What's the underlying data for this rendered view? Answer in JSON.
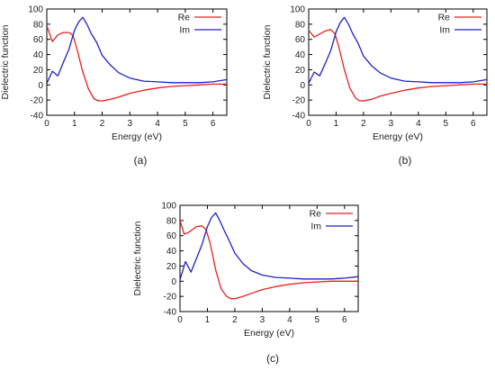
{
  "chart_data": [
    {
      "type": "line",
      "panel_label": "(a)",
      "xlabel": "Energy (eV)",
      "ylabel": "Dielectric function",
      "xlim": [
        0,
        6.5
      ],
      "ylim": [
        -40,
        100
      ],
      "xticks": [
        0,
        1,
        2,
        3,
        4,
        5,
        6
      ],
      "yticks": [
        -40,
        -20,
        0,
        20,
        40,
        60,
        80,
        100
      ],
      "legend_position": "top-right",
      "series": [
        {
          "name": "Re",
          "color": "#e8201d",
          "x": [
            0,
            0.2,
            0.4,
            0.6,
            0.8,
            0.95,
            1.1,
            1.3,
            1.5,
            1.7,
            1.85,
            2.0,
            2.3,
            2.6,
            3.0,
            3.5,
            4.0,
            4.5,
            5.0,
            5.5,
            6.0,
            6.5
          ],
          "y": [
            78,
            57,
            66,
            69,
            69,
            65,
            46,
            17,
            -5,
            -18,
            -21,
            -21,
            -19,
            -16,
            -11,
            -7,
            -4,
            -2,
            -1,
            0,
            1,
            1
          ]
        },
        {
          "name": "Im",
          "color": "#1f22c8",
          "x": [
            0,
            0.2,
            0.4,
            0.6,
            0.8,
            1.0,
            1.15,
            1.3,
            1.45,
            1.6,
            1.8,
            2.0,
            2.3,
            2.6,
            3.0,
            3.5,
            4.0,
            4.5,
            5.0,
            5.5,
            6.0,
            6.5
          ],
          "y": [
            2,
            18,
            12,
            30,
            47,
            72,
            83,
            89,
            80,
            68,
            56,
            39,
            26,
            16,
            9,
            5,
            4,
            3,
            3,
            3,
            4,
            7
          ]
        }
      ]
    },
    {
      "type": "line",
      "panel_label": "(b)",
      "xlabel": "Energy (eV)",
      "ylabel": "Dielectric function",
      "xlim": [
        0,
        6.5
      ],
      "ylim": [
        -40,
        100
      ],
      "xticks": [
        0,
        1,
        2,
        3,
        4,
        5,
        6
      ],
      "yticks": [
        -40,
        -20,
        0,
        20,
        40,
        60,
        80,
        100
      ],
      "legend_position": "top-right",
      "series": [
        {
          "name": "Re",
          "color": "#e8201d",
          "x": [
            0,
            0.2,
            0.4,
            0.6,
            0.8,
            0.95,
            1.1,
            1.3,
            1.5,
            1.7,
            1.85,
            2.0,
            2.3,
            2.6,
            3.0,
            3.5,
            4.0,
            4.5,
            5.0,
            5.5,
            6.0,
            6.5
          ],
          "y": [
            72,
            63,
            67,
            71,
            73,
            68,
            50,
            20,
            -4,
            -17,
            -21,
            -21,
            -19,
            -15,
            -11,
            -7,
            -4,
            -2,
            -1,
            0,
            1,
            1
          ]
        },
        {
          "name": "Im",
          "color": "#1f22c8",
          "x": [
            0,
            0.2,
            0.4,
            0.6,
            0.8,
            1.0,
            1.15,
            1.3,
            1.45,
            1.6,
            1.8,
            2.0,
            2.3,
            2.6,
            3.0,
            3.5,
            4.0,
            4.5,
            5.0,
            5.5,
            6.0,
            6.5
          ],
          "y": [
            2,
            17,
            12,
            28,
            45,
            70,
            82,
            89,
            80,
            68,
            55,
            38,
            25,
            16,
            9,
            5,
            4,
            3,
            3,
            3,
            4,
            7
          ]
        }
      ]
    },
    {
      "type": "line",
      "panel_label": "(c)",
      "xlabel": "Energy (eV)",
      "ylabel": "Dielectric function",
      "xlim": [
        0,
        6.5
      ],
      "ylim": [
        -40,
        100
      ],
      "xticks": [
        0,
        1,
        2,
        3,
        4,
        5,
        6
      ],
      "yticks": [
        -40,
        -20,
        0,
        20,
        40,
        60,
        80,
        100
      ],
      "legend_position": "top-right",
      "series": [
        {
          "name": "Re",
          "color": "#e8201d",
          "x": [
            0,
            0.15,
            0.3,
            0.45,
            0.6,
            0.8,
            0.95,
            1.1,
            1.3,
            1.5,
            1.7,
            1.85,
            2.0,
            2.3,
            2.6,
            3.0,
            3.5,
            4.0,
            4.5,
            5.0,
            5.5,
            6.0,
            6.5
          ],
          "y": [
            80,
            62,
            64,
            68,
            72,
            73,
            68,
            50,
            15,
            -10,
            -20,
            -23,
            -23,
            -20,
            -16,
            -11,
            -7,
            -4,
            -2,
            -1,
            0,
            0,
            0
          ]
        },
        {
          "name": "Im",
          "color": "#1f22c8",
          "x": [
            0,
            0.2,
            0.4,
            0.6,
            0.8,
            1.0,
            1.15,
            1.3,
            1.45,
            1.6,
            1.8,
            2.0,
            2.3,
            2.6,
            3.0,
            3.5,
            4.0,
            4.5,
            5.0,
            5.5,
            6.0,
            6.5
          ],
          "y": [
            2,
            26,
            12,
            30,
            48,
            72,
            84,
            90,
            80,
            68,
            53,
            37,
            23,
            14,
            8,
            5,
            4,
            3,
            3,
            3,
            4,
            6
          ]
        }
      ]
    }
  ]
}
